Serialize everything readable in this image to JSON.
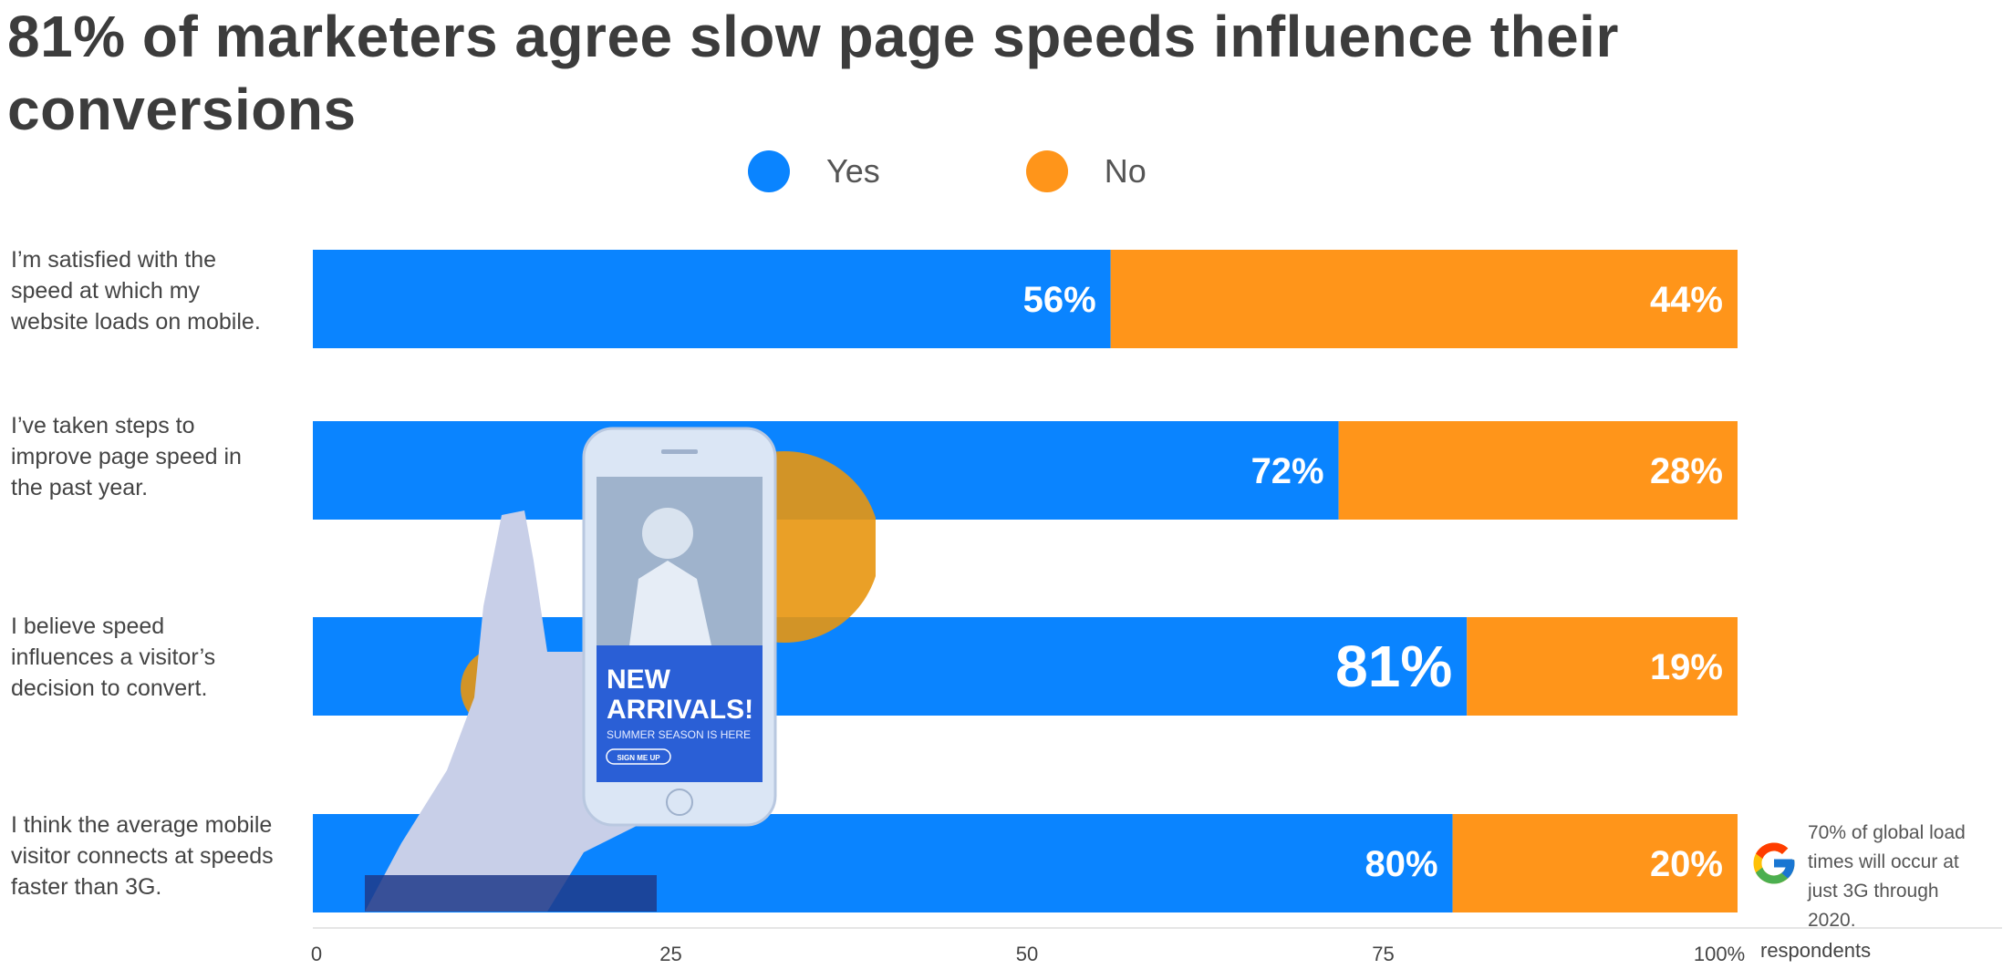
{
  "title": "81% of marketers agree slow page speeds influence their conversions",
  "legend": {
    "items": [
      {
        "label": "Yes",
        "color": "#0a84ff"
      },
      {
        "label": "No",
        "color": "#ff951a"
      }
    ]
  },
  "note": {
    "icon": "google-logo-icon",
    "text": "70% of global load\ntimes will occur at\njust 3G through 2020."
  },
  "illustration": {
    "icon": "phone-in-hand-icon",
    "headline": "NEW\nARRIVALS!",
    "subline": "SUMMER SEASON IS HERE",
    "button": "SIGN ME UP"
  },
  "chart_data": {
    "type": "bar",
    "orientation": "horizontal",
    "stacked": true,
    "categories": [
      "I’m satisfied with the\nspeed at which my\nwebsite loads on mobile.",
      "I’ve taken steps to\nimprove page speed in\nthe past year.",
      "I believe speed\ninfluences a visitor’s\ndecision to convert.",
      "I think the average mobile\nvisitor connects at speeds\nfaster than 3G."
    ],
    "series": [
      {
        "name": "Yes",
        "values": [
          56,
          72,
          81,
          80
        ],
        "labels": [
          "56%",
          "72%",
          "81%",
          "80%"
        ],
        "color": "#0a84ff"
      },
      {
        "name": "No",
        "values": [
          44,
          28,
          19,
          20
        ],
        "labels": [
          "44%",
          "28%",
          "19%",
          "20%"
        ],
        "color": "#ff951a"
      }
    ],
    "highlight_index": 2,
    "xlim": [
      0,
      100
    ],
    "xticks": [
      0,
      25,
      50,
      75,
      100
    ],
    "xtick_labels": [
      "0",
      "25",
      "50",
      "75",
      "100%"
    ],
    "xlabel": "respondents",
    "grid": false,
    "legend_position": "top-center"
  }
}
